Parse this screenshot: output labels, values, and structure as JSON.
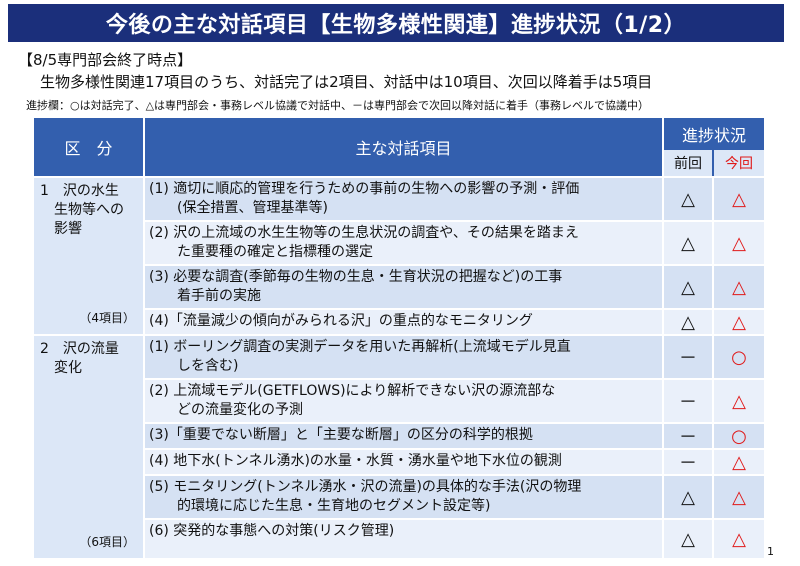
{
  "title": "今後の主な対話項目【生物多様性関連】進捗状況（1/2）",
  "subtitle_point": "【8/5専門部会終了時点】",
  "subtitle_summary": "生物多様性関連17項目のうち、対話完了は2項目、対話中は10項目、次回以降着手は5項目",
  "legend": "進捗欄：○は対話完了、△は専門部会・事務レベル協議で対話中、－は専門部会で次回以降対話に着手（事務レベルで協議中）",
  "table": {
    "headers": {
      "category": "区　分",
      "item": "主な対話項目",
      "progress": "進捗状況",
      "previous": "前回",
      "current": "今回"
    },
    "sections": [
      {
        "category": "1　沢の水生\n　生物等への\n　影響",
        "count": "（4項目）",
        "rows": [
          {
            "text": "(1) 適切に順応的管理を行うための事前の生物への影響の予測・評価\n　　(保全措置、管理基準等)",
            "prev": "△",
            "curr": "△"
          },
          {
            "text": "(2) 沢の上流域の水生生物等の生息状況の調査や、その結果を踏まえ\n　　た重要種の確定と指標種の選定",
            "prev": "△",
            "curr": "△"
          },
          {
            "text": "(3) 必要な調査(季節毎の生物の生息・生育状況の把握など)の工事\n　　着手前の実施",
            "prev": "△",
            "curr": "△"
          },
          {
            "text": "(4)「流量減少の傾向がみられる沢」の重点的なモニタリング",
            "prev": "△",
            "curr": "△"
          }
        ]
      },
      {
        "category": "2　沢の流量\n　変化",
        "count": "（6項目）",
        "rows": [
          {
            "text": "(1) ボーリング調査の実測データを用いた再解析(上流域モデル見直\n　　しを含む)",
            "prev": "－",
            "curr": "○"
          },
          {
            "text": "(2) 上流域モデル(GETFLOWS)により解析できない沢の源流部な\n　　どの流量変化の予測",
            "prev": "－",
            "curr": "△"
          },
          {
            "text": "(3)「重要でない断層」と「主要な断層」の区分の科学的根拠",
            "prev": "－",
            "curr": "○"
          },
          {
            "text": "(4) 地下水(トンネル湧水)の水量・水質・湧水量や地下水位の観測",
            "prev": "－",
            "curr": "△"
          },
          {
            "text": "(5) モニタリング(トンネル湧水・沢の流量)の具体的な手法(沢の物理\n　　的環境に応じた生息・生育地のセグメント設定等)",
            "prev": "△",
            "curr": "△"
          },
          {
            "text": "(6) 突発的な事態への対策(リスク管理)",
            "prev": "△",
            "curr": "△"
          }
        ]
      }
    ]
  },
  "page_number": "1",
  "colors": {
    "title_bg": "#1b2f7b",
    "header_bg": "#335fae",
    "current_mark": "#e01a1a"
  }
}
